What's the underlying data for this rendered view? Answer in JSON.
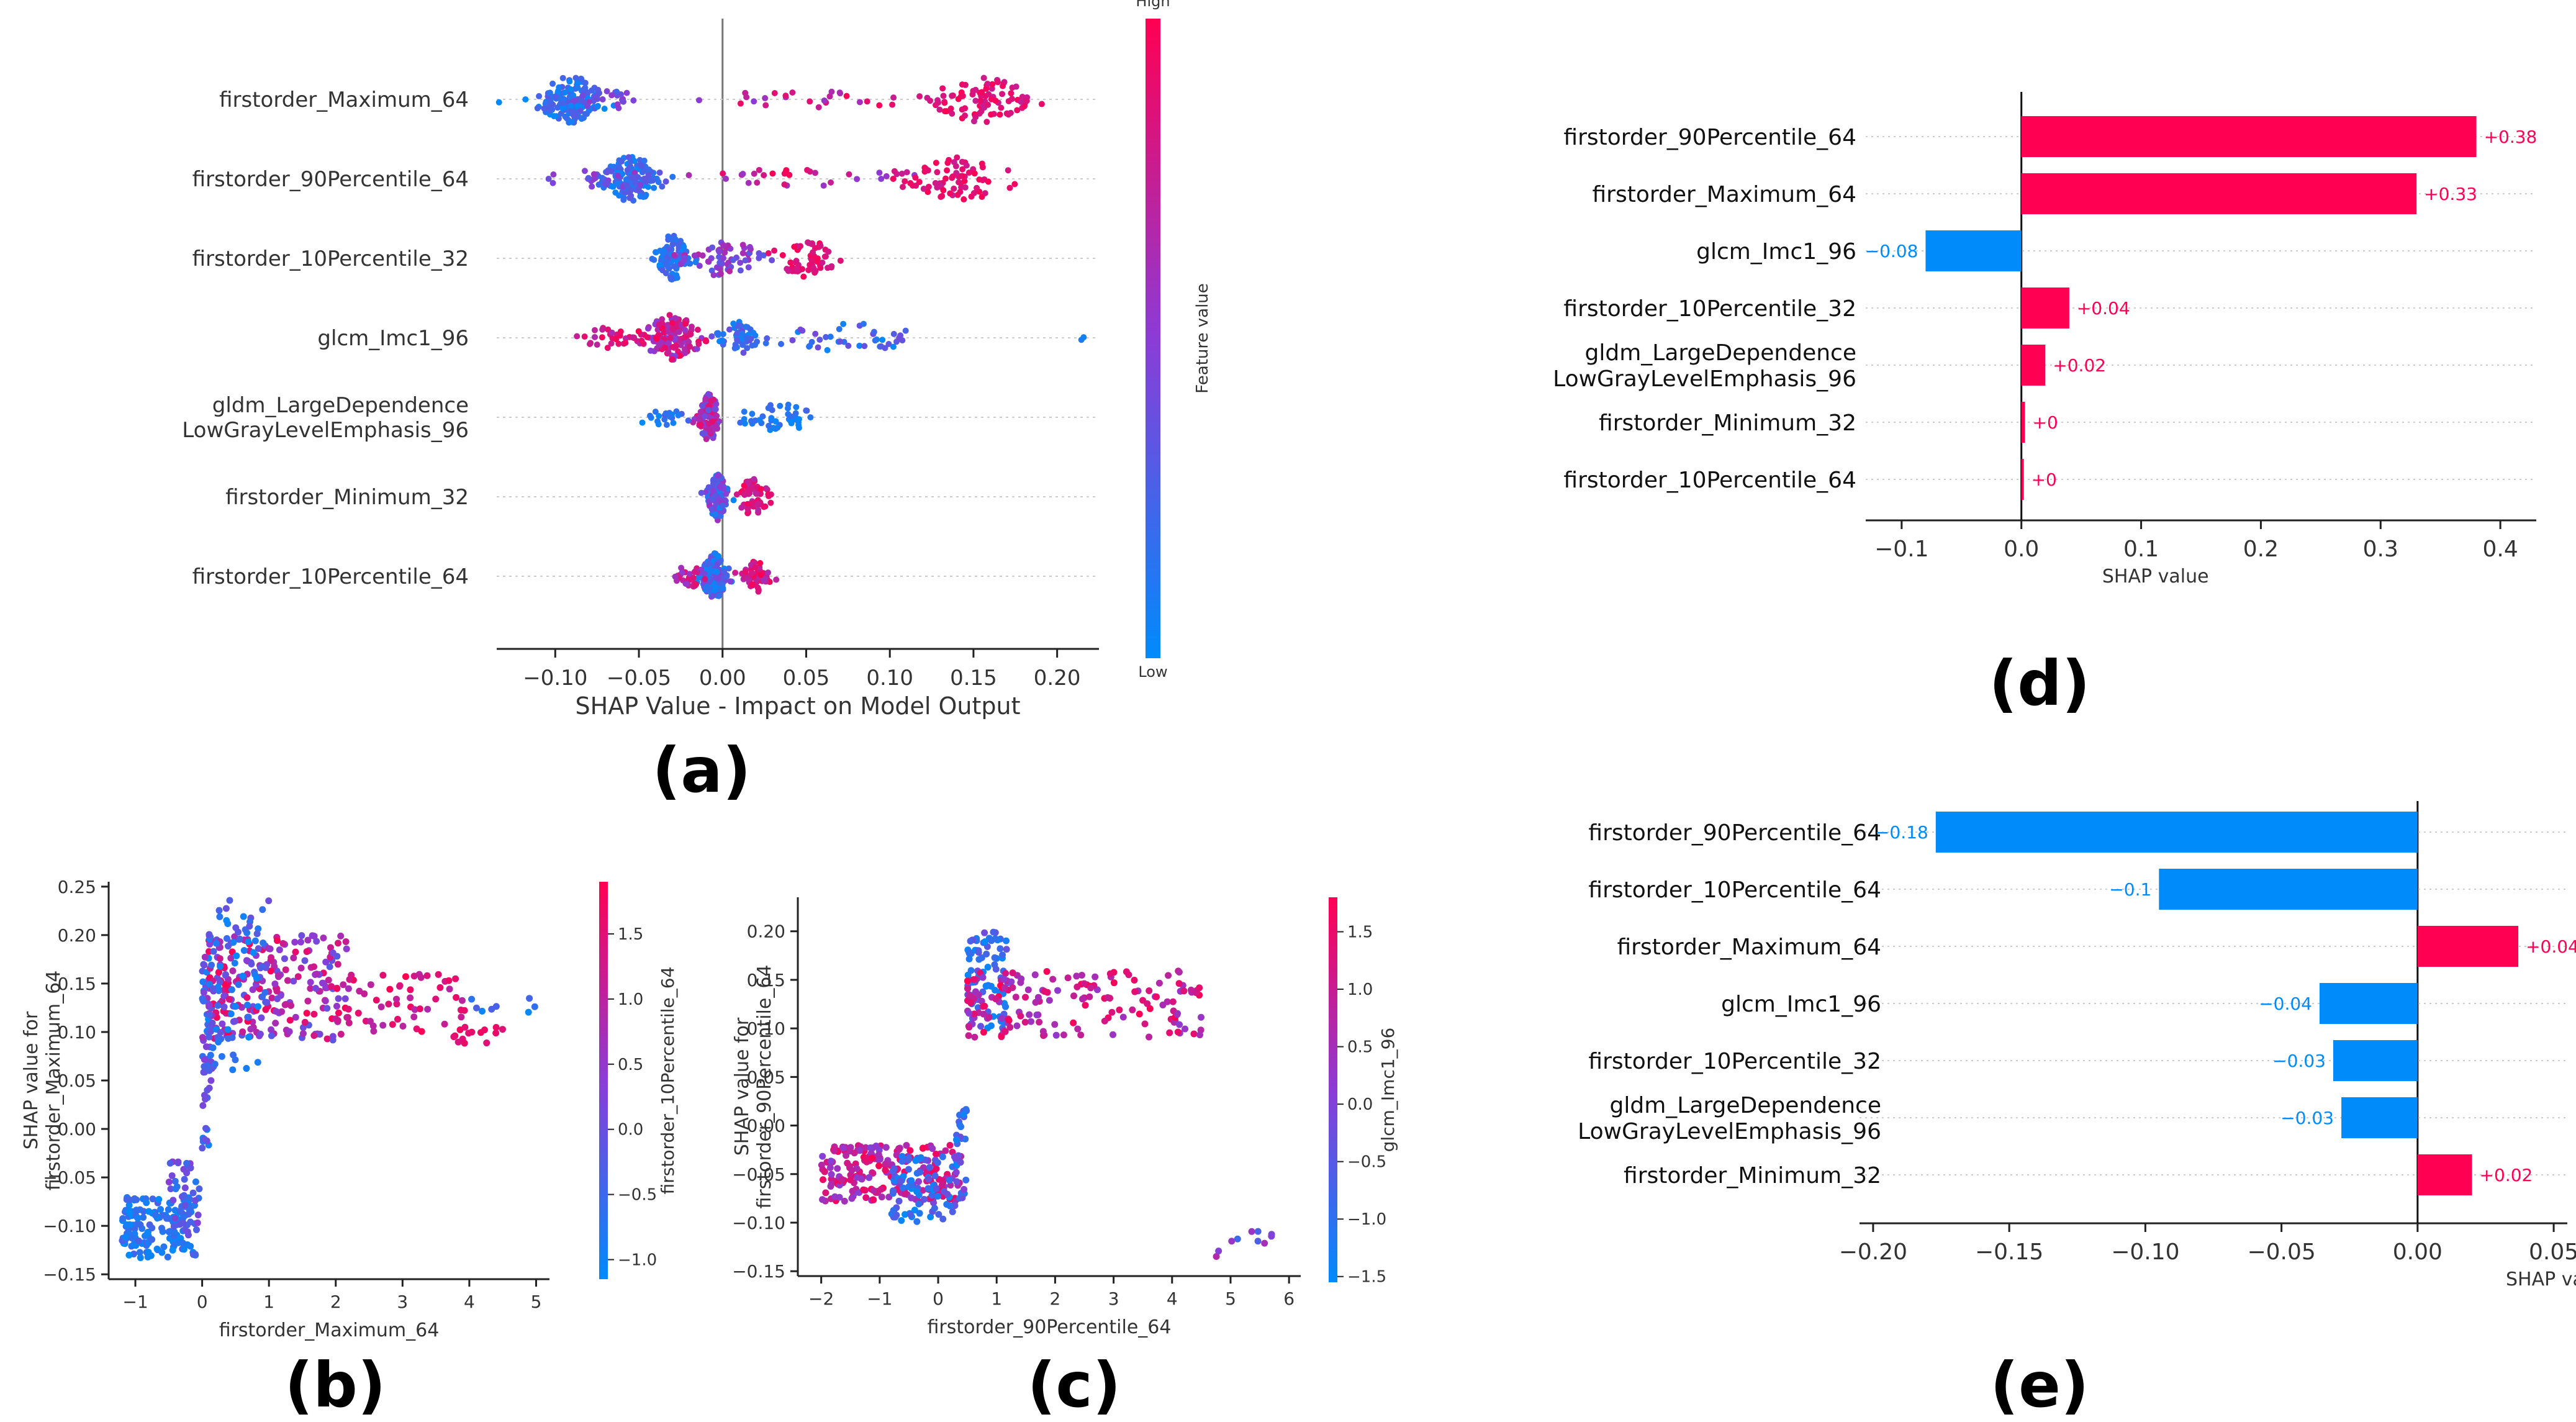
{
  "colors": {
    "high": "#ff0052",
    "mid": "#8b3cd6",
    "low": "#008bfb",
    "axis": "#222222",
    "grid": "#cccccc",
    "text": "#333333",
    "zero_line": "#999999"
  },
  "chart_data": [
    {
      "panel": "(a)",
      "type": "scatter",
      "subtype": "beeswarm",
      "xlabel": "SHAP Value - Impact on Model Output",
      "xlim": [
        -0.135,
        0.225
      ],
      "xticks": [
        -0.1,
        -0.05,
        0.0,
        0.05,
        0.1,
        0.15,
        0.2
      ],
      "xtick_labels": [
        "−0.10",
        "−0.05",
        "0.00",
        "0.05",
        "0.10",
        "0.15",
        "0.20"
      ],
      "features": [
        {
          "name": "firstorder_Maximum_64",
          "clusters": [
            {
              "center": -0.09,
              "spread": 0.018,
              "n": 140,
              "cmin": 0.0,
              "cmax": 0.35
            },
            {
              "center": -0.07,
              "spread": 0.02,
              "n": 25,
              "cmin": 0.2,
              "cmax": 0.55
            },
            {
              "center": 0.06,
              "spread": 0.05,
              "n": 25,
              "cmin": 0.5,
              "cmax": 1.0
            },
            {
              "center": 0.155,
              "spread": 0.025,
              "n": 90,
              "cmin": 0.75,
              "cmax": 1.0
            }
          ]
        },
        {
          "name": "firstorder_90Percentile_64",
          "clusters": [
            {
              "center": -0.055,
              "spread": 0.015,
              "n": 130,
              "cmin": 0.0,
              "cmax": 0.35
            },
            {
              "center": -0.07,
              "spread": 0.025,
              "n": 25,
              "cmin": 0.3,
              "cmax": 0.6
            },
            {
              "center": 0.05,
              "spread": 0.05,
              "n": 30,
              "cmin": 0.5,
              "cmax": 1.0
            },
            {
              "center": 0.14,
              "spread": 0.03,
              "n": 75,
              "cmin": 0.75,
              "cmax": 1.0
            }
          ]
        },
        {
          "name": "firstorder_10Percentile_32",
          "clusters": [
            {
              "center": -0.03,
              "spread": 0.008,
              "n": 100,
              "cmin": 0.0,
              "cmax": 0.3
            },
            {
              "center": 0.0,
              "spread": 0.02,
              "n": 60,
              "cmin": 0.3,
              "cmax": 0.7
            },
            {
              "center": 0.05,
              "spread": 0.018,
              "n": 60,
              "cmin": 0.75,
              "cmax": 1.0
            }
          ]
        },
        {
          "name": "glcm_Imc1_96",
          "clusters": [
            {
              "center": -0.03,
              "spread": 0.015,
              "n": 130,
              "cmin": 0.45,
              "cmax": 1.0
            },
            {
              "center": -0.065,
              "spread": 0.015,
              "n": 30,
              "cmin": 0.6,
              "cmax": 1.0
            },
            {
              "center": 0.01,
              "spread": 0.012,
              "n": 50,
              "cmin": 0.0,
              "cmax": 0.4
            },
            {
              "center": 0.075,
              "spread": 0.04,
              "n": 45,
              "cmin": 0.0,
              "cmax": 0.45
            },
            {
              "center": 0.215,
              "spread": 0.001,
              "n": 2,
              "cmin": 0.0,
              "cmax": 0.1
            }
          ]
        },
        {
          "name": "gldm_LargeDependence\nLowGrayLevelEmphasis_96",
          "clusters": [
            {
              "center": -0.008,
              "spread": 0.006,
              "n": 110,
              "cmin": 0.3,
              "cmax": 0.9
            },
            {
              "center": -0.035,
              "spread": 0.015,
              "n": 20,
              "cmin": 0.0,
              "cmax": 0.3
            },
            {
              "center": 0.035,
              "spread": 0.018,
              "n": 45,
              "cmin": 0.0,
              "cmax": 0.25
            }
          ]
        },
        {
          "name": "firstorder_Minimum_32",
          "clusters": [
            {
              "center": -0.003,
              "spread": 0.005,
              "n": 120,
              "cmin": 0.0,
              "cmax": 0.6
            },
            {
              "center": 0.018,
              "spread": 0.008,
              "n": 60,
              "cmin": 0.65,
              "cmax": 1.0
            }
          ]
        },
        {
          "name": "firstorder_10Percentile_64",
          "clusters": [
            {
              "center": -0.005,
              "spread": 0.007,
              "n": 130,
              "cmin": 0.0,
              "cmax": 0.55
            },
            {
              "center": 0.02,
              "spread": 0.007,
              "n": 50,
              "cmin": 0.6,
              "cmax": 1.0
            },
            {
              "center": -0.02,
              "spread": 0.008,
              "n": 30,
              "cmin": 0.5,
              "cmax": 0.9
            }
          ]
        }
      ],
      "colorbar": {
        "label": "Feature value",
        "high": "High",
        "low": "Low"
      }
    },
    {
      "panel": "(b)",
      "type": "scatter",
      "subtype": "dependence",
      "xlabel": "firstorder_Maximum_64",
      "ylabel": [
        "SHAP value for",
        "firstorder_Maximum_64"
      ],
      "xlim": [
        -1.4,
        5.2
      ],
      "ylim": [
        -0.155,
        0.255
      ],
      "xticks": [
        -1,
        0,
        1,
        2,
        3,
        4,
        5
      ],
      "yticks": [
        -0.15,
        -0.1,
        -0.05,
        0.0,
        0.05,
        0.1,
        0.15,
        0.2,
        0.25
      ],
      "colorbar": {
        "label": "firstorder_10Percentile_64",
        "range": [
          -1.15,
          1.9
        ],
        "ticks": [
          -1.0,
          -0.5,
          0.0,
          0.5,
          1.0,
          1.5
        ],
        "tick_labels": [
          "−1.0",
          "−0.5",
          "0.0",
          "0.5",
          "1.0",
          "1.5"
        ]
      },
      "clusters": [
        {
          "xmin": -1.2,
          "xmax": -0.1,
          "ymin": -0.135,
          "ymax": -0.07,
          "n": 150,
          "cmin": 0.0,
          "cmax": 0.3
        },
        {
          "xmin": -0.5,
          "xmax": 0.0,
          "ymin": -0.11,
          "ymax": -0.03,
          "n": 50,
          "cmin": 0.1,
          "cmax": 0.5
        },
        {
          "xmin": 0.0,
          "xmax": 0.15,
          "ymin": -0.02,
          "ymax": 0.18,
          "n": 60,
          "cmin": 0.0,
          "cmax": 0.6
        },
        {
          "xmin": 0.1,
          "xmax": 2.2,
          "ymin": 0.09,
          "ymax": 0.2,
          "n": 250,
          "cmin": 0.3,
          "cmax": 1.0
        },
        {
          "xmin": 0.1,
          "xmax": 1.0,
          "ymin": 0.06,
          "ymax": 0.24,
          "n": 80,
          "cmin": 0.0,
          "cmax": 0.4
        },
        {
          "xmin": 2.0,
          "xmax": 4.0,
          "ymin": 0.1,
          "ymax": 0.16,
          "n": 60,
          "cmin": 0.65,
          "cmax": 1.0
        },
        {
          "xmin": 3.7,
          "xmax": 4.6,
          "ymin": 0.085,
          "ymax": 0.105,
          "n": 15,
          "cmin": 0.8,
          "cmax": 1.0
        },
        {
          "xmin": 4.0,
          "xmax": 5.0,
          "ymin": 0.12,
          "ymax": 0.14,
          "n": 8,
          "cmin": 0.0,
          "cmax": 0.3
        }
      ]
    },
    {
      "panel": "(c)",
      "type": "scatter",
      "subtype": "dependence",
      "xlabel": "firstorder_90Percentile_64",
      "ylabel": [
        "SHAP value for",
        "firstorder_90Percentile_64"
      ],
      "xlim": [
        -2.4,
        6.2
      ],
      "ylim": [
        -0.155,
        0.235
      ],
      "xticks": [
        -2,
        -1,
        0,
        1,
        2,
        3,
        4,
        5,
        6
      ],
      "yticks": [
        -0.15,
        -0.1,
        -0.05,
        0.0,
        0.05,
        0.1,
        0.15,
        0.2
      ],
      "colorbar": {
        "label": "glcm_Imc1_96",
        "range": [
          -1.55,
          1.8
        ],
        "ticks": [
          -1.5,
          -1.0,
          -0.5,
          0.0,
          0.5,
          1.0,
          1.5
        ],
        "tick_labels": [
          "−1.5",
          "−1.0",
          "−0.5",
          "0.0",
          "0.5",
          "1.0",
          "1.5"
        ]
      },
      "clusters": [
        {
          "xmin": -2.0,
          "xmax": 0.4,
          "ymin": -0.08,
          "ymax": -0.02,
          "n": 220,
          "cmin": 0.45,
          "cmax": 1.0
        },
        {
          "xmin": -0.8,
          "xmax": 0.4,
          "ymin": -0.1,
          "ymax": -0.03,
          "n": 80,
          "cmin": 0.0,
          "cmax": 0.4
        },
        {
          "xmin": 0.3,
          "xmax": 0.5,
          "ymin": -0.08,
          "ymax": 0.02,
          "n": 30,
          "cmin": 0.0,
          "cmax": 0.5
        },
        {
          "xmin": 0.5,
          "xmax": 1.2,
          "ymin": 0.1,
          "ymax": 0.2,
          "n": 80,
          "cmin": 0.0,
          "cmax": 0.4
        },
        {
          "xmin": 0.5,
          "xmax": 4.5,
          "ymin": 0.09,
          "ymax": 0.16,
          "n": 170,
          "cmin": 0.5,
          "cmax": 1.0
        },
        {
          "xmin": 4.6,
          "xmax": 5.8,
          "ymin": -0.135,
          "ymax": -0.105,
          "n": 10,
          "cmin": 0.2,
          "cmax": 0.7
        }
      ]
    },
    {
      "panel": "(d)",
      "type": "bar",
      "orientation": "horizontal",
      "xlabel": "SHAP value",
      "xlim": [
        -0.13,
        0.43
      ],
      "xticks": [
        -0.1,
        0.0,
        0.1,
        0.2,
        0.3,
        0.4
      ],
      "xtick_labels": [
        "−0.1",
        "0.0",
        "0.1",
        "0.2",
        "0.3",
        "0.4"
      ],
      "categories": [
        "firstorder_90Percentile_64",
        "firstorder_Maximum_64",
        "glcm_Imc1_96",
        "firstorder_10Percentile_32",
        "gldm_LargeDependence\nLowGrayLevelEmphasis_96",
        "firstorder_Minimum_32",
        "firstorder_10Percentile_64"
      ],
      "values": [
        0.38,
        0.33,
        -0.08,
        0.04,
        0.02,
        0.003,
        0.002
      ],
      "value_labels": [
        "+0.38",
        "+0.33",
        "−0.08",
        "+0.04",
        "+0.02",
        "+0",
        "+0"
      ]
    },
    {
      "panel": "(e)",
      "type": "bar",
      "orientation": "horizontal",
      "xlabel": "SHAP value",
      "xlim": [
        -0.205,
        0.055
      ],
      "xticks": [
        -0.2,
        -0.15,
        -0.1,
        -0.05,
        0.0,
        0.05
      ],
      "xtick_labels": [
        "−0.20",
        "−0.15",
        "−0.10",
        "−0.05",
        "0.00",
        "0.05"
      ],
      "categories": [
        "firstorder_90Percentile_64",
        "firstorder_10Percentile_64",
        "firstorder_Maximum_64",
        "glcm_Imc1_96",
        "firstorder_10Percentile_32",
        "gldm_LargeDependence\nLowGrayLevelEmphasis_96",
        "firstorder_Minimum_32"
      ],
      "values": [
        -0.177,
        -0.095,
        0.037,
        -0.036,
        -0.031,
        -0.028,
        0.02
      ],
      "value_labels": [
        "−0.18",
        "−0.1",
        "+0.04",
        "−0.04",
        "−0.03",
        "−0.03",
        "+0.02"
      ]
    }
  ]
}
